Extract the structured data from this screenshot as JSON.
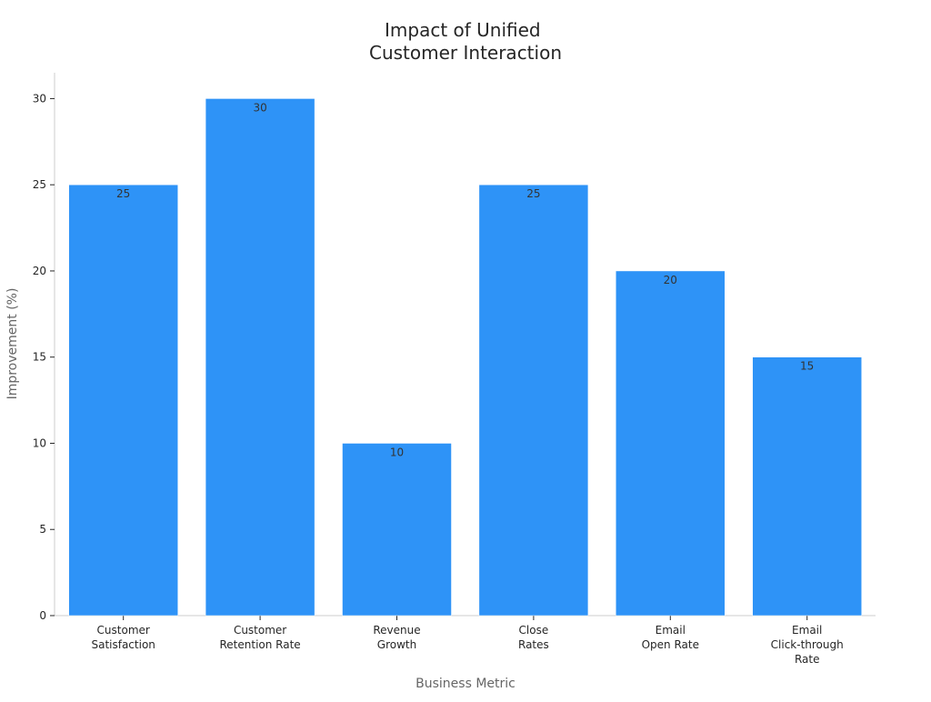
{
  "chart_data": {
    "type": "bar",
    "title": [
      "Impact of Unified",
      "Customer Interaction"
    ],
    "xlabel": "Business Metric",
    "ylabel": "Improvement (%)",
    "categories": [
      [
        "Customer",
        "Satisfaction"
      ],
      [
        "Customer",
        "Retention Rate"
      ],
      [
        "Revenue",
        "Growth"
      ],
      [
        "Close",
        "Rates"
      ],
      [
        "Email",
        "Open Rate"
      ],
      [
        "Email",
        "Click-through",
        "Rate"
      ]
    ],
    "values": [
      25,
      30,
      10,
      25,
      20,
      15
    ],
    "data_labels": [
      "25",
      "30",
      "10",
      "25",
      "20",
      "15"
    ],
    "ylim": [
      0,
      31.5
    ],
    "yticks": [
      0,
      5,
      10,
      15,
      20,
      25,
      30
    ],
    "bar_color": "#2e93f7",
    "grid": false,
    "legend": "none"
  }
}
